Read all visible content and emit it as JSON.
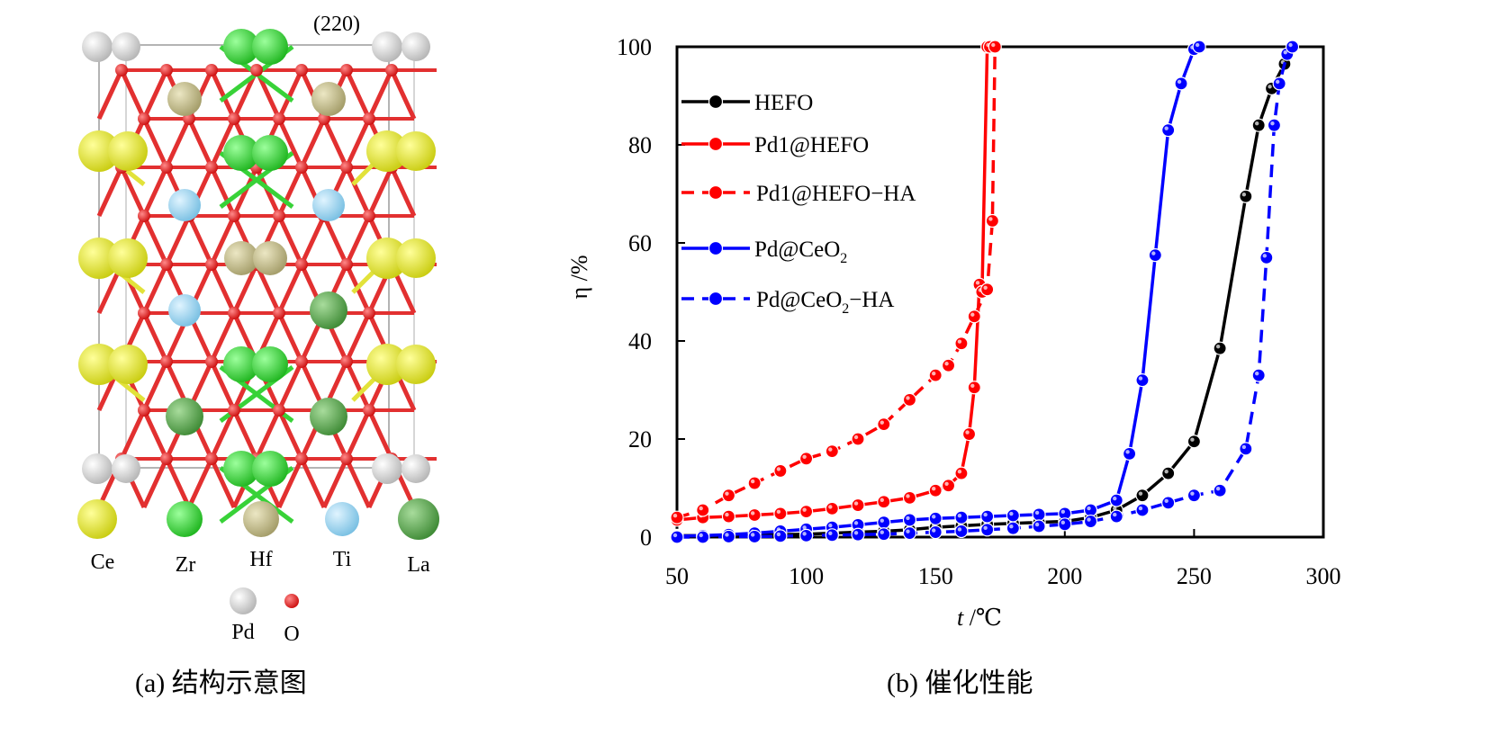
{
  "panel_a": {
    "plane_label": "(220)",
    "caption": "(a) 结构示意图",
    "legend": [
      {
        "label": "Ce",
        "color": "#d8dc1a",
        "icon": "yellow-sphere-icon"
      },
      {
        "label": "Zr",
        "color": "#2fd12f",
        "icon": "green-sphere-icon"
      },
      {
        "label": "Hf",
        "color": "#b9b383",
        "icon": "khaki-sphere-icon"
      },
      {
        "label": "Ti",
        "color": "#8fd0ee",
        "icon": "lightblue-sphere-icon"
      },
      {
        "label": "La",
        "color": "#4f9f45",
        "icon": "darkgreen-sphere-icon"
      },
      {
        "label": "Pd",
        "color": "#cfcfcf",
        "icon": "grey-sphere-icon"
      },
      {
        "label": "O",
        "color": "#e02020",
        "icon": "red-sphere-icon"
      }
    ]
  },
  "panel_b": {
    "caption": "(b) 催化性能"
  },
  "chart_data": {
    "type": "line",
    "title": "",
    "xlabel_italic": "t",
    "xlabel_unit": " /℃",
    "ylabel": "η /%",
    "xlim": [
      50,
      300
    ],
    "ylim": [
      0,
      100
    ],
    "xticks": [
      50,
      100,
      150,
      200,
      250,
      300
    ],
    "yticks": [
      0,
      20,
      40,
      60,
      80,
      100
    ],
    "grid": false,
    "legend_position": "top-left",
    "series": [
      {
        "name": "HEFO",
        "name_main": "HEFO",
        "name_sub": "",
        "name_tail": "",
        "color": "#000000",
        "dash": false,
        "x": [
          50,
          60,
          70,
          80,
          90,
          100,
          110,
          120,
          130,
          140,
          150,
          160,
          170,
          180,
          190,
          200,
          210,
          220,
          230,
          240,
          250,
          260,
          270,
          275,
          280,
          285
        ],
        "y": [
          0.3,
          0.3,
          0.4,
          0.4,
          0.5,
          0.6,
          0.8,
          1.0,
          1.2,
          1.5,
          2.0,
          2.3,
          2.6,
          2.8,
          3.0,
          3.2,
          4.0,
          5.5,
          8.5,
          13.0,
          19.5,
          38.5,
          69.5,
          84.0,
          91.5,
          96.5
        ]
      },
      {
        "name": "Pd1@HEFO",
        "name_main": "Pd1@HEFO",
        "name_sub": "",
        "name_tail": "",
        "color": "#ff0000",
        "dash": false,
        "x": [
          50,
          60,
          70,
          80,
          90,
          100,
          110,
          120,
          130,
          140,
          150,
          155,
          160,
          163,
          165,
          167,
          168,
          170,
          171
        ],
        "y": [
          3.5,
          4.0,
          4.2,
          4.5,
          4.8,
          5.2,
          5.8,
          6.5,
          7.2,
          8.0,
          9.5,
          10.5,
          13.0,
          21.0,
          30.5,
          51.5,
          50.0,
          100,
          100
        ]
      },
      {
        "name": "Pd1@HEFO-HA",
        "name_main": "Pd1@HEFO−HA",
        "name_sub": "",
        "name_tail": "",
        "color": "#ff0000",
        "dash": true,
        "x": [
          50,
          60,
          70,
          80,
          90,
          100,
          110,
          120,
          130,
          140,
          150,
          155,
          160,
          165,
          170,
          172,
          173
        ],
        "y": [
          4.0,
          5.5,
          8.5,
          11.0,
          13.5,
          16.0,
          17.5,
          20.0,
          23.0,
          28.0,
          33.0,
          35.0,
          39.5,
          45.0,
          50.5,
          64.5,
          100
        ]
      },
      {
        "name": "Pd@CeO2",
        "name_main": "Pd@CeO",
        "name_sub": "2",
        "name_tail": "",
        "color": "#0000ff",
        "dash": false,
        "x": [
          50,
          60,
          70,
          80,
          90,
          100,
          110,
          120,
          130,
          140,
          150,
          160,
          170,
          180,
          190,
          200,
          210,
          220,
          225,
          230,
          235,
          240,
          245,
          250,
          252
        ],
        "y": [
          0.2,
          0.3,
          0.5,
          0.8,
          1.2,
          1.6,
          2.0,
          2.5,
          3.0,
          3.5,
          3.8,
          4.0,
          4.2,
          4.4,
          4.6,
          4.8,
          5.5,
          7.5,
          17.0,
          32.0,
          57.5,
          83.0,
          92.5,
          99.5,
          100
        ]
      },
      {
        "name": "Pd@CeO2-HA",
        "name_main": "Pd@CeO",
        "name_sub": "2",
        "name_tail": "−HA",
        "color": "#0000ff",
        "dash": true,
        "x": [
          50,
          60,
          70,
          80,
          90,
          100,
          110,
          120,
          130,
          140,
          150,
          160,
          170,
          180,
          190,
          200,
          210,
          220,
          230,
          240,
          250,
          260,
          270,
          275,
          278,
          281,
          283,
          286,
          288
        ],
        "y": [
          0.0,
          0.0,
          0.1,
          0.1,
          0.2,
          0.3,
          0.4,
          0.5,
          0.6,
          0.8,
          1.0,
          1.2,
          1.5,
          1.8,
          2.2,
          2.6,
          3.2,
          4.2,
          5.5,
          7.0,
          8.5,
          9.5,
          18.0,
          33.0,
          57.0,
          84.0,
          92.5,
          98.5,
          100
        ]
      }
    ]
  }
}
